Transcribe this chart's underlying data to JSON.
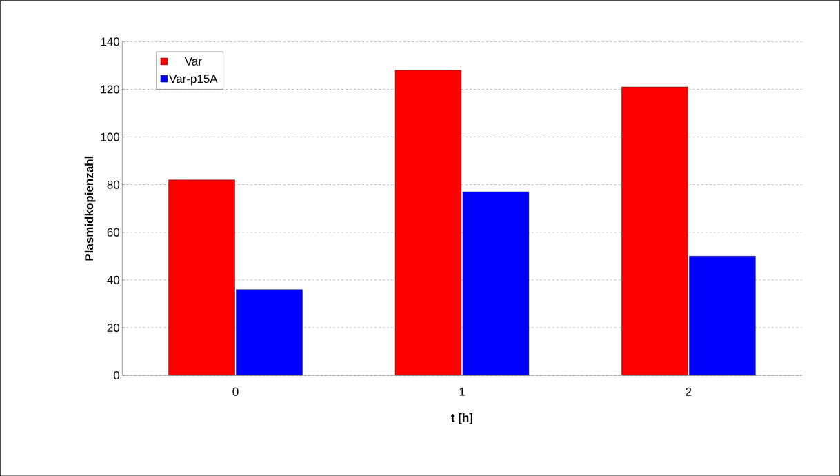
{
  "chart_data": {
    "type": "bar",
    "xlabel": "t [h]",
    "ylabel": "Plasmidkopienzahl",
    "categories": [
      "0",
      "1",
      "2"
    ],
    "series": [
      {
        "name": "Var",
        "color": "#ff0000",
        "values": [
          82,
          128,
          121
        ]
      },
      {
        "name": "Var-p15A",
        "color": "#0000ff",
        "values": [
          36,
          77,
          50
        ]
      }
    ],
    "ylim": [
      0,
      140
    ],
    "yticks": [
      0,
      20,
      40,
      60,
      80,
      100,
      120,
      140
    ],
    "grid": "y",
    "legend": "top left"
  }
}
